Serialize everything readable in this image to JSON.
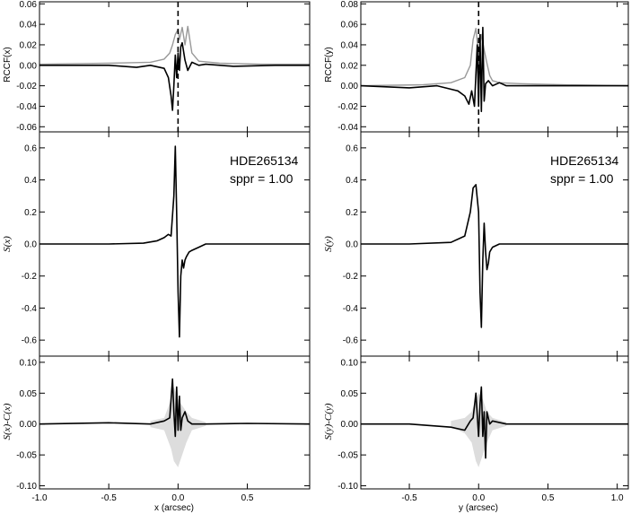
{
  "chart_data": [
    {
      "id": "x-rccf",
      "type": "line",
      "ylabel": "RCCF(x)",
      "xlim": [
        -1.0,
        0.95
      ],
      "ylim": [
        -0.065,
        0.062
      ],
      "yticks": [
        0.06,
        0.04,
        0.02,
        0.0,
        -0.02,
        -0.04,
        -0.06
      ],
      "ytick_labels": [
        "0.06",
        "0.04",
        "0.02",
        "0.00",
        "-0.02",
        "-0.04",
        "-0.06"
      ],
      "dashed_vline_x": 0.0,
      "series": [
        {
          "color": "#999999",
          "x": [
            -1.0,
            -0.5,
            -0.2,
            -0.1,
            -0.06,
            -0.04,
            -0.02,
            0.0,
            0.01,
            0.03,
            0.05,
            0.07,
            0.1,
            0.15,
            0.3,
            0.6,
            0.95
          ],
          "y": [
            0.001,
            0.002,
            0.003,
            0.006,
            0.012,
            0.02,
            0.03,
            0.035,
            0.025,
            0.037,
            0.02,
            0.038,
            0.012,
            0.004,
            0.002,
            0.001,
            0.001
          ]
        },
        {
          "color": "#000000",
          "x": [
            -1.0,
            -0.5,
            -0.3,
            -0.2,
            -0.1,
            -0.07,
            -0.05,
            -0.04,
            -0.03,
            -0.02,
            -0.01,
            0.0,
            0.01,
            0.02,
            0.03,
            0.05,
            0.07,
            0.1,
            0.15,
            0.2,
            0.4,
            0.7,
            0.95
          ],
          "y": [
            0.0,
            0.0,
            -0.002,
            0.0,
            -0.003,
            -0.012,
            -0.03,
            -0.044,
            -0.02,
            0.01,
            -0.012,
            0.012,
            -0.005,
            0.018,
            0.022,
            0.005,
            -0.005,
            0.003,
            0.0,
            0.001,
            -0.001,
            0.0,
            0.0
          ]
        }
      ]
    },
    {
      "id": "x-s",
      "type": "line",
      "ylabel": "S(x)",
      "xlim": [
        -1.0,
        0.95
      ],
      "ylim": [
        -0.7,
        0.7
      ],
      "yticks": [
        0.6,
        0.4,
        0.2,
        0.0,
        -0.2,
        -0.4,
        -0.6
      ],
      "ytick_labels": [
        "0.6",
        "0.4",
        "0.2",
        "0.0",
        "-0.2",
        "-0.4",
        "-0.6"
      ],
      "annotations": [
        "HDE265134",
        "sppr = 1.00"
      ],
      "series": [
        {
          "color": "#000000",
          "x": [
            -1.0,
            -0.5,
            -0.25,
            -0.15,
            -0.1,
            -0.07,
            -0.05,
            -0.03,
            -0.02,
            -0.01,
            0.0,
            0.01,
            0.02,
            0.03,
            0.04,
            0.05,
            0.06,
            0.08,
            0.1,
            0.15,
            0.2,
            0.4,
            0.7,
            0.95
          ],
          "y": [
            0.0,
            0.0,
            0.005,
            0.02,
            0.04,
            0.06,
            0.05,
            0.3,
            0.61,
            0.2,
            -0.3,
            -0.58,
            -0.2,
            -0.1,
            -0.15,
            -0.1,
            -0.08,
            -0.05,
            -0.04,
            -0.02,
            0.0,
            0.0,
            0.0,
            0.0
          ]
        }
      ]
    },
    {
      "id": "x-diff",
      "type": "line",
      "ylabel": "S(x)-C(x)",
      "xlabel": "x (arcsec)",
      "xlim": [
        -1.0,
        0.95
      ],
      "ylim": [
        -0.105,
        0.11
      ],
      "xticks": [
        -1.0,
        -0.5,
        0.0,
        0.5
      ],
      "xtick_labels": [
        "-1.0",
        "-0.5",
        "0.0",
        "0.5"
      ],
      "yticks": [
        0.1,
        0.05,
        0.0,
        -0.05,
        -0.1
      ],
      "ytick_labels": [
        "0.10",
        "0.05",
        "0.00",
        "-0.05",
        "-0.10"
      ],
      "band": {
        "color": "#dddddd",
        "x": [
          -0.2,
          -0.1,
          -0.05,
          -0.03,
          0.0,
          0.03,
          0.06,
          0.1,
          0.2
        ],
        "upper": [
          0.005,
          0.01,
          0.04,
          0.06,
          0.04,
          0.03,
          0.02,
          0.01,
          0.003
        ],
        "lower": [
          -0.005,
          -0.01,
          -0.04,
          -0.06,
          -0.07,
          -0.05,
          -0.03,
          -0.01,
          -0.003
        ]
      },
      "series": [
        {
          "color": "#000000",
          "x": [
            -1.0,
            -0.5,
            -0.2,
            -0.1,
            -0.06,
            -0.04,
            -0.03,
            -0.02,
            -0.01,
            0.0,
            0.01,
            0.02,
            0.03,
            0.05,
            0.07,
            0.1,
            0.2,
            0.5,
            0.95
          ],
          "y": [
            0.0,
            0.002,
            0.0,
            0.005,
            0.01,
            0.073,
            0.02,
            -0.02,
            0.06,
            -0.01,
            0.045,
            -0.01,
            0.01,
            0.02,
            0.005,
            0.0,
            0.0,
            0.001,
            0.0
          ]
        }
      ]
    },
    {
      "id": "y-rccf",
      "type": "line",
      "ylabel": "RCCF(y)",
      "xlim": [
        -0.85,
        1.08
      ],
      "ylim": [
        -0.045,
        0.082
      ],
      "yticks": [
        0.08,
        0.06,
        0.04,
        0.02,
        0.0,
        -0.02,
        -0.04
      ],
      "ytick_labels": [
        "0.08",
        "0.06",
        "0.04",
        "0.02",
        "0.00",
        "-0.02",
        "-0.04"
      ],
      "dashed_vline_x": 0.0,
      "series": [
        {
          "color": "#999999",
          "x": [
            -0.85,
            -0.4,
            -0.2,
            -0.1,
            -0.06,
            -0.04,
            -0.02,
            0.0,
            0.02,
            0.04,
            0.06,
            0.08,
            0.1,
            0.15,
            0.3,
            0.6,
            1.08
          ],
          "y": [
            0.0,
            0.001,
            0.003,
            0.008,
            0.02,
            0.045,
            0.056,
            0.03,
            0.05,
            0.035,
            0.022,
            0.01,
            0.005,
            0.003,
            0.002,
            0.001,
            0.0
          ]
        },
        {
          "color": "#000000",
          "x": [
            -0.85,
            -0.5,
            -0.3,
            -0.15,
            -0.1,
            -0.07,
            -0.05,
            -0.03,
            -0.01,
            0.0,
            0.01,
            0.02,
            0.03,
            0.04,
            0.05,
            0.07,
            0.1,
            0.15,
            0.2,
            0.5,
            0.8,
            1.08
          ],
          "y": [
            0.0,
            -0.002,
            0.0,
            -0.005,
            -0.01,
            -0.018,
            -0.005,
            -0.02,
            0.04,
            -0.02,
            0.05,
            -0.025,
            0.057,
            -0.015,
            0.002,
            0.005,
            0.0,
            0.003,
            0.0,
            0.0,
            0.0,
            0.0
          ]
        }
      ]
    },
    {
      "id": "y-s",
      "type": "line",
      "ylabel": "S(y)",
      "xlim": [
        -0.85,
        1.08
      ],
      "ylim": [
        -0.7,
        0.7
      ],
      "yticks": [
        0.6,
        0.4,
        0.2,
        0.0,
        -0.2,
        -0.4,
        -0.6
      ],
      "ytick_labels": [
        "0.6",
        "0.4",
        "0.2",
        "0.0",
        "-0.2",
        "-0.4",
        "-0.6"
      ],
      "annotations": [
        "HDE265134",
        "sppr = 1.00"
      ],
      "series": [
        {
          "color": "#000000",
          "x": [
            -0.85,
            -0.5,
            -0.2,
            -0.1,
            -0.06,
            -0.04,
            -0.02,
            0.0,
            0.01,
            0.02,
            0.03,
            0.04,
            0.05,
            0.06,
            0.07,
            0.08,
            0.1,
            0.15,
            0.2,
            0.5,
            1.08
          ],
          "y": [
            0.0,
            0.0,
            0.01,
            0.05,
            0.2,
            0.35,
            0.37,
            0.2,
            -0.3,
            -0.52,
            -0.1,
            0.13,
            -0.05,
            -0.16,
            -0.12,
            -0.05,
            -0.02,
            0.0,
            0.0,
            0.0,
            0.0
          ]
        }
      ]
    },
    {
      "id": "y-diff",
      "type": "line",
      "ylabel": "S(y)-C(y)",
      "xlabel": "y (arcsec)",
      "xlim": [
        -0.85,
        1.08
      ],
      "ylim": [
        -0.105,
        0.11
      ],
      "xticks": [
        -0.5,
        0.0,
        0.5,
        1.0
      ],
      "xtick_labels": [
        "-0.5",
        "0.0",
        "0.5",
        "1.0"
      ],
      "yticks": [
        0.1,
        0.05,
        0.0,
        -0.05,
        -0.1
      ],
      "ytick_labels": [
        "0.10",
        "0.05",
        "0.00",
        "-0.05",
        "-0.10"
      ],
      "band": {
        "color": "#dddddd",
        "x": [
          -0.2,
          -0.1,
          -0.05,
          -0.02,
          0.0,
          0.03,
          0.06,
          0.1,
          0.2
        ],
        "upper": [
          0.005,
          0.01,
          0.02,
          0.04,
          0.05,
          0.04,
          0.02,
          0.01,
          0.003
        ],
        "lower": [
          -0.005,
          -0.015,
          -0.03,
          -0.06,
          -0.07,
          -0.05,
          -0.03,
          -0.01,
          -0.003
        ]
      },
      "series": [
        {
          "color": "#000000",
          "x": [
            -0.85,
            -0.5,
            -0.2,
            -0.1,
            -0.06,
            -0.04,
            -0.02,
            0.0,
            0.01,
            0.02,
            0.03,
            0.04,
            0.05,
            0.06,
            0.08,
            0.1,
            0.2,
            0.5,
            1.08
          ],
          "y": [
            0.0,
            0.0,
            -0.005,
            -0.01,
            0.005,
            0.01,
            0.05,
            -0.02,
            0.032,
            0.06,
            -0.02,
            0.02,
            -0.055,
            0.02,
            0.0,
            0.005,
            0.0,
            0.0,
            0.0
          ]
        }
      ]
    }
  ]
}
